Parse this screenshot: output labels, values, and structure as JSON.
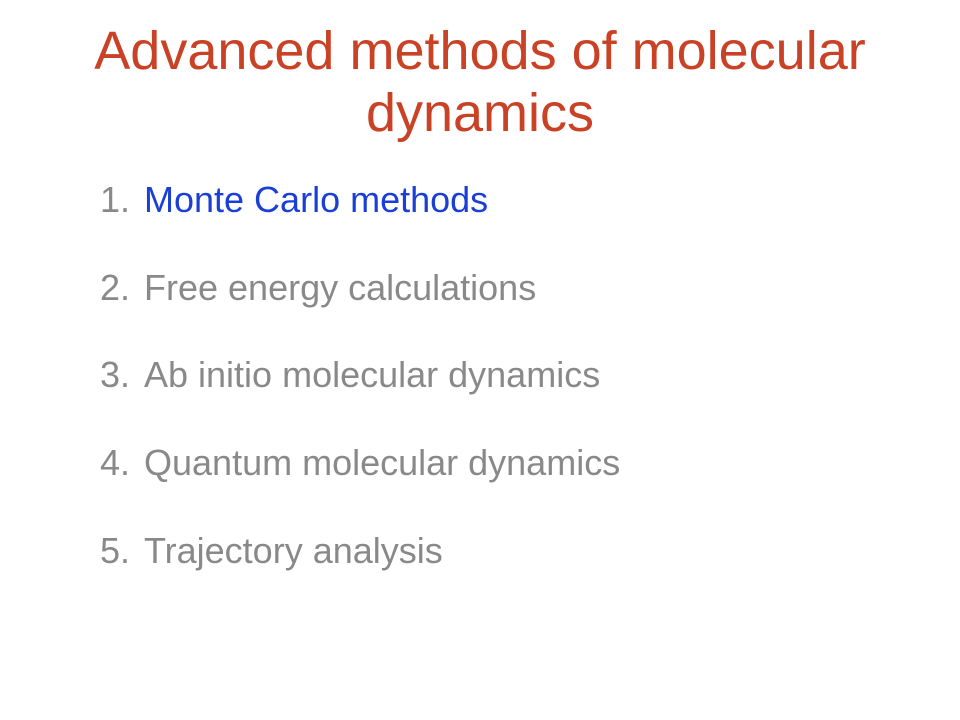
{
  "slide": {
    "title": "Advanced methods of molecular dynamics",
    "title_color": "#c94226",
    "title_fontsize": 54,
    "background_color": "#ffffff",
    "list_fontsize": 36,
    "list_number_color": "#898989",
    "list_item_spacing": 48,
    "items": [
      {
        "n": "1.",
        "text": "Monte Carlo methods",
        "color": "#1a3fd6"
      },
      {
        "n": "2.",
        "text": "Free energy calculations",
        "color": "#898989"
      },
      {
        "n": "3.",
        "text": "Ab initio molecular dynamics",
        "color": "#898989"
      },
      {
        "n": "4.",
        "text": "Quantum molecular dynamics",
        "color": "#898989"
      },
      {
        "n": "5.",
        "text": "Trajectory analysis",
        "color": "#898989"
      }
    ]
  }
}
